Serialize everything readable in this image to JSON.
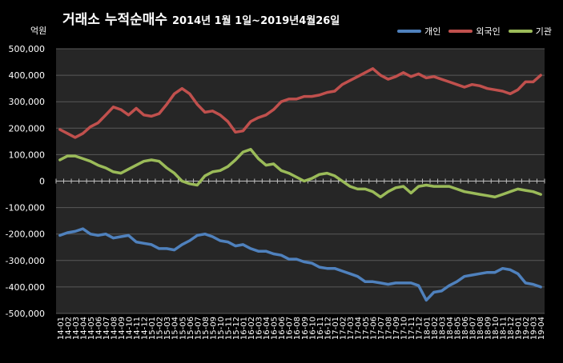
{
  "chart_data": {
    "type": "line",
    "title": "거래소 누적순매수",
    "subtitle": "2014년 1월 1일~2019년4월26일",
    "ylabel": "억원",
    "ylim": [
      -500000,
      500000
    ],
    "yticks": [
      500000,
      400000,
      300000,
      200000,
      100000,
      0,
      -100000,
      -200000,
      -300000,
      -400000,
      -500000
    ],
    "ytick_labels": [
      "500,000",
      "400,000",
      "300,000",
      "200,000",
      "100,000",
      "0",
      "-100,000",
      "-200,000",
      "-300,000",
      "-400,000",
      "-500,000"
    ],
    "grid": true,
    "legend_position": "top-right",
    "categories": [
      "14-01",
      "14-02",
      "14-03",
      "14-04",
      "14-05",
      "14-06",
      "14-07",
      "14-08",
      "14-09",
      "14-10",
      "14-11",
      "14-12",
      "15-01",
      "15-02",
      "15-03",
      "15-04",
      "15-05",
      "15-06",
      "15-07",
      "15-08",
      "15-09",
      "15-10",
      "15-11",
      "15-12",
      "16-01",
      "16-02",
      "16-03",
      "16-04",
      "16-05",
      "16-06",
      "16-07",
      "16-08",
      "16-09",
      "16-10",
      "16-11",
      "16-12",
      "17-01",
      "17-02",
      "17-03",
      "17-04",
      "17-05",
      "17-06",
      "17-07",
      "17-08",
      "17-09",
      "17-10",
      "17-11",
      "17-12",
      "18-01",
      "18-02",
      "18-03",
      "18-04",
      "18-05",
      "18-06",
      "18-07",
      "18-08",
      "18-09",
      "18-10",
      "18-11",
      "18-12",
      "19-01",
      "19-02",
      "19-03",
      "19-04"
    ],
    "series": [
      {
        "name": "개인",
        "color": "#4f81bd",
        "values": [
          -205000,
          -195000,
          -190000,
          -180000,
          -200000,
          -205000,
          -200000,
          -215000,
          -210000,
          -205000,
          -230000,
          -235000,
          -240000,
          -255000,
          -255000,
          -260000,
          -240000,
          -225000,
          -205000,
          -200000,
          -210000,
          -225000,
          -230000,
          -245000,
          -240000,
          -255000,
          -265000,
          -265000,
          -275000,
          -280000,
          -295000,
          -295000,
          -305000,
          -310000,
          -325000,
          -330000,
          -330000,
          -340000,
          -350000,
          -360000,
          -380000,
          -380000,
          -385000,
          -390000,
          -385000,
          -385000,
          -385000,
          -395000,
          -450000,
          -420000,
          -415000,
          -395000,
          -380000,
          -360000,
          -355000,
          -350000,
          -345000,
          -345000,
          -330000,
          -335000,
          -350000,
          -385000,
          -390000,
          -400000
        ]
      },
      {
        "name": "외국인",
        "color": "#c0504d",
        "values": [
          195000,
          180000,
          165000,
          180000,
          205000,
          220000,
          250000,
          280000,
          270000,
          250000,
          275000,
          250000,
          245000,
          255000,
          290000,
          330000,
          350000,
          330000,
          290000,
          260000,
          265000,
          250000,
          225000,
          185000,
          190000,
          225000,
          240000,
          250000,
          270000,
          300000,
          310000,
          310000,
          320000,
          320000,
          325000,
          335000,
          340000,
          365000,
          380000,
          395000,
          410000,
          425000,
          400000,
          385000,
          395000,
          410000,
          395000,
          405000,
          390000,
          395000,
          385000,
          375000,
          365000,
          355000,
          365000,
          360000,
          350000,
          345000,
          340000,
          330000,
          345000,
          375000,
          375000,
          400000
        ]
      },
      {
        "name": "기관",
        "color": "#9bbb59",
        "values": [
          80000,
          95000,
          95000,
          85000,
          75000,
          60000,
          50000,
          35000,
          30000,
          45000,
          60000,
          75000,
          80000,
          75000,
          50000,
          30000,
          0,
          -10000,
          -15000,
          20000,
          35000,
          40000,
          55000,
          80000,
          110000,
          120000,
          85000,
          60000,
          65000,
          40000,
          30000,
          15000,
          0,
          10000,
          25000,
          30000,
          20000,
          0,
          -20000,
          -30000,
          -30000,
          -40000,
          -60000,
          -40000,
          -25000,
          -20000,
          -45000,
          -20000,
          -15000,
          -20000,
          -20000,
          -20000,
          -30000,
          -40000,
          -45000,
          -50000,
          -55000,
          -60000,
          -50000,
          -40000,
          -30000,
          -35000,
          -40000,
          -50000
        ]
      }
    ]
  }
}
